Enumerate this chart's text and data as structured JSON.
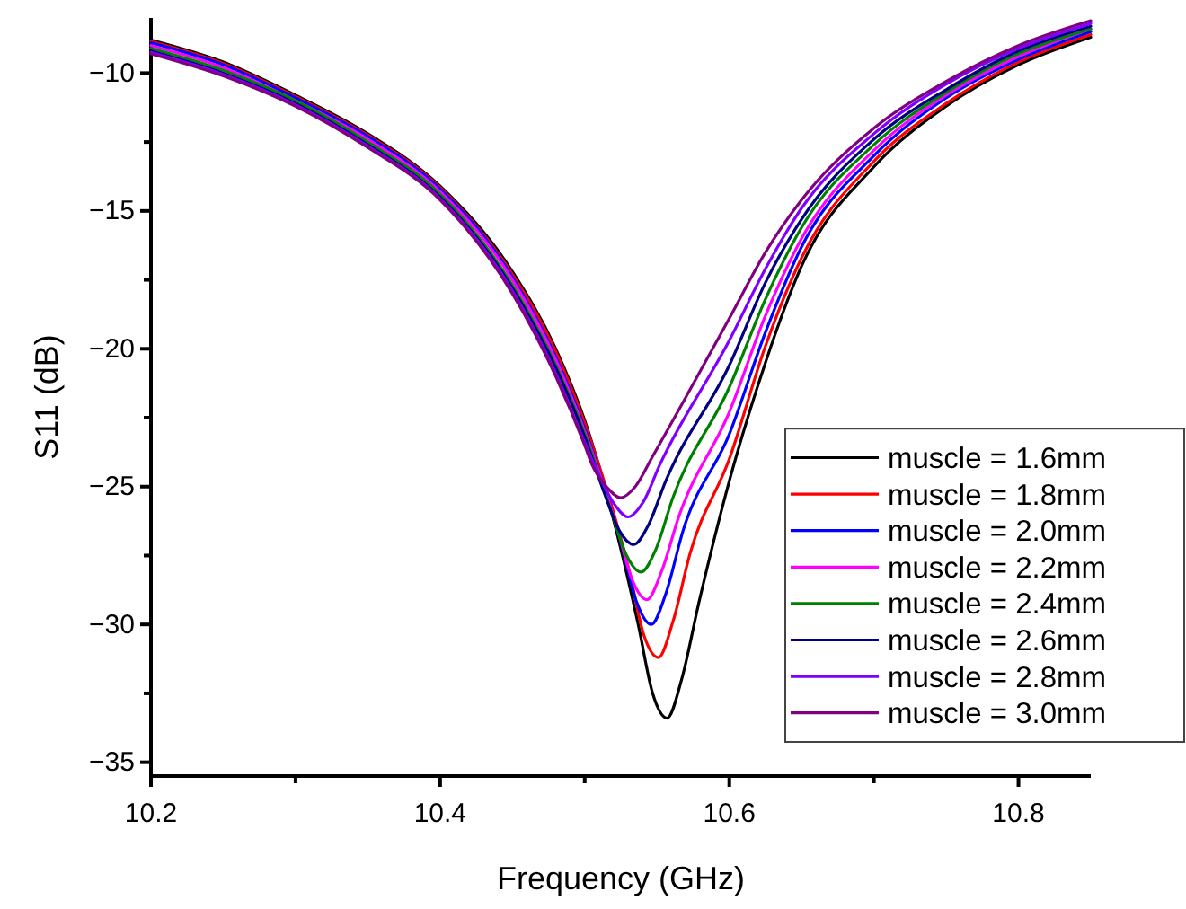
{
  "chart_data": {
    "type": "line",
    "xlabel": "Frequency (GHz)",
    "ylabel": "S11 (dB)",
    "xlim": [
      10.2,
      10.85
    ],
    "ylim": [
      -35.5,
      -8
    ],
    "xticks": [
      10.2,
      {
        "value": 10.3,
        "label": null
      },
      10.4,
      {
        "value": 10.5,
        "label": null
      },
      10.6,
      {
        "value": 10.7,
        "label": null
      },
      10.8
    ],
    "yticks": [
      -35,
      {
        "value": -32.5,
        "label": null
      },
      -30,
      {
        "value": -27.5,
        "label": null
      },
      -25,
      {
        "value": -22.5,
        "label": null
      },
      -20,
      {
        "value": -17.5,
        "label": null
      },
      -15,
      {
        "value": -12.5,
        "label": null
      },
      -10
    ],
    "grid": false,
    "legend": "bottom right",
    "marker": "none",
    "line_style": "solid",
    "series": [
      {
        "name": "muscle = 1.6mm",
        "color": "#000000",
        "x": [
          10.2,
          10.25,
          10.3,
          10.35,
          10.4,
          10.45,
          10.48,
          10.5,
          10.537,
          10.547,
          10.557,
          10.567,
          10.579,
          10.6,
          10.625,
          10.65,
          10.7,
          10.75,
          10.8,
          10.85
        ],
        "values": [
          -8.8,
          -9.6,
          -10.8,
          -12.2,
          -14.1,
          -17.2,
          -20.0,
          -22.6,
          -30.0,
          -32.5,
          -33.4,
          -32.0,
          -29.2,
          -24.8,
          -20.5,
          -17.0,
          -13.4,
          -11.2,
          -9.7,
          -8.7
        ]
      },
      {
        "name": "muscle = 1.8mm",
        "color": "#ff0000",
        "x": [
          10.2,
          10.25,
          10.3,
          10.35,
          10.4,
          10.45,
          10.48,
          10.5,
          10.531,
          10.541,
          10.551,
          10.561,
          10.573,
          10.6,
          10.625,
          10.65,
          10.7,
          10.75,
          10.8,
          10.85
        ],
        "values": [
          -8.85,
          -9.65,
          -10.85,
          -12.25,
          -14.15,
          -17.3,
          -20.1,
          -22.7,
          -28.1,
          -30.4,
          -31.2,
          -29.9,
          -27.4,
          -24.0,
          -19.9,
          -16.7,
          -13.2,
          -11.1,
          -9.6,
          -8.6
        ]
      },
      {
        "name": "muscle = 2.0mm",
        "color": "#0000ff",
        "x": [
          10.2,
          10.25,
          10.3,
          10.35,
          10.4,
          10.45,
          10.48,
          10.5,
          10.526,
          10.536,
          10.546,
          10.556,
          10.568,
          10.6,
          10.625,
          10.65,
          10.7,
          10.75,
          10.8,
          10.85
        ],
        "values": [
          -8.9,
          -9.7,
          -10.9,
          -12.3,
          -14.2,
          -17.4,
          -20.3,
          -22.9,
          -27.2,
          -29.2,
          -30.0,
          -28.9,
          -26.6,
          -23.1,
          -19.4,
          -16.3,
          -13.0,
          -10.9,
          -9.5,
          -8.5
        ]
      },
      {
        "name": "muscle = 2.2mm",
        "color": "#ff00ff",
        "x": [
          10.2,
          10.25,
          10.3,
          10.35,
          10.4,
          10.45,
          10.48,
          10.5,
          10.523,
          10.533,
          10.543,
          10.553,
          10.565,
          10.6,
          10.625,
          10.65,
          10.7,
          10.75,
          10.8,
          10.85
        ],
        "values": [
          -9.0,
          -9.8,
          -11.0,
          -12.4,
          -14.3,
          -17.5,
          -20.4,
          -23.0,
          -26.6,
          -28.4,
          -29.1,
          -28.1,
          -26.1,
          -22.3,
          -18.8,
          -16.0,
          -12.8,
          -10.8,
          -9.4,
          -8.4
        ]
      },
      {
        "name": "muscle = 2.4mm",
        "color": "#008000",
        "x": [
          10.2,
          10.25,
          10.3,
          10.35,
          10.4,
          10.45,
          10.48,
          10.5,
          10.519,
          10.529,
          10.539,
          10.549,
          10.561,
          10.6,
          10.625,
          10.65,
          10.7,
          10.75,
          10.8,
          10.85
        ],
        "values": [
          -9.1,
          -9.9,
          -11.0,
          -12.5,
          -14.4,
          -17.7,
          -20.6,
          -23.1,
          -26.0,
          -27.5,
          -28.1,
          -27.3,
          -25.4,
          -21.4,
          -18.2,
          -15.6,
          -12.6,
          -10.7,
          -9.3,
          -8.4
        ]
      },
      {
        "name": "muscle = 2.6mm",
        "color": "#000080",
        "x": [
          10.2,
          10.25,
          10.3,
          10.35,
          10.4,
          10.45,
          10.48,
          10.5,
          10.514,
          10.524,
          10.534,
          10.544,
          10.556,
          10.6,
          10.625,
          10.65,
          10.7,
          10.75,
          10.8,
          10.85
        ],
        "values": [
          -9.2,
          -10.0,
          -11.1,
          -12.6,
          -14.5,
          -17.8,
          -20.7,
          -23.2,
          -25.3,
          -26.6,
          -27.1,
          -26.4,
          -24.8,
          -20.6,
          -17.6,
          -15.3,
          -12.4,
          -10.6,
          -9.2,
          -8.3
        ]
      },
      {
        "name": "muscle = 2.8mm",
        "color": "#8000ff",
        "x": [
          10.2,
          10.25,
          10.3,
          10.35,
          10.4,
          10.45,
          10.48,
          10.5,
          10.51,
          10.52,
          10.53,
          10.54,
          10.552,
          10.6,
          10.625,
          10.65,
          10.7,
          10.75,
          10.8,
          10.85
        ],
        "values": [
          -9.25,
          -10.05,
          -11.15,
          -12.65,
          -14.55,
          -17.9,
          -20.9,
          -23.4,
          -24.6,
          -25.6,
          -26.1,
          -25.6,
          -24.2,
          -19.7,
          -17.1,
          -14.9,
          -12.2,
          -10.4,
          -9.1,
          -8.2
        ]
      },
      {
        "name": "muscle = 3.0mm",
        "color": "#800080",
        "x": [
          10.2,
          10.25,
          10.3,
          10.35,
          10.4,
          10.45,
          10.48,
          10.5,
          10.505,
          10.515,
          10.525,
          10.535,
          10.547,
          10.6,
          10.625,
          10.65,
          10.7,
          10.75,
          10.8,
          10.85
        ],
        "values": [
          -9.3,
          -10.1,
          -11.2,
          -12.7,
          -14.6,
          -18.0,
          -21.0,
          -23.5,
          -24.2,
          -25.0,
          -25.4,
          -25.0,
          -23.9,
          -18.9,
          -16.5,
          -14.6,
          -12.0,
          -10.3,
          -9.0,
          -8.1
        ]
      }
    ]
  }
}
